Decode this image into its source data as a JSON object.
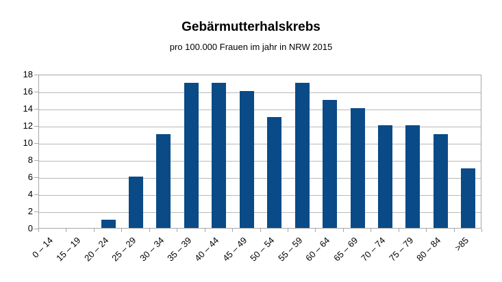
{
  "chart_data": {
    "type": "bar",
    "title": "Gebärmutterhalskrebs",
    "subtitle": "pro 100.000 Frauen im jahr in NRW 2015",
    "categories": [
      "0 – 14",
      "15 – 19",
      "20 – 24",
      "25 – 29",
      "30 – 34",
      "35 – 39",
      "40 – 44",
      "45 – 49",
      "50 – 54",
      "55 – 59",
      "60 – 64",
      "65 – 69",
      "70 – 74",
      "75 – 79",
      "80 – 84",
      ">85"
    ],
    "values": [
      0,
      0,
      1,
      6,
      11,
      17,
      17,
      16,
      13,
      17,
      15,
      14,
      12,
      12,
      11,
      7
    ],
    "xlabel": "",
    "ylabel": "",
    "ylim": [
      0,
      18
    ],
    "ytick_step": 2,
    "ytick_labels": [
      "0",
      "2",
      "4",
      "6",
      "8",
      "10",
      "12",
      "14",
      "16",
      "18"
    ],
    "grid": true,
    "legend": "none",
    "bar_color": "#0a4a87",
    "grid_color": "#b8b8b8",
    "axis_color": "#a6a6a6",
    "text_color": "#000000",
    "background_color": "#ffffff"
  }
}
